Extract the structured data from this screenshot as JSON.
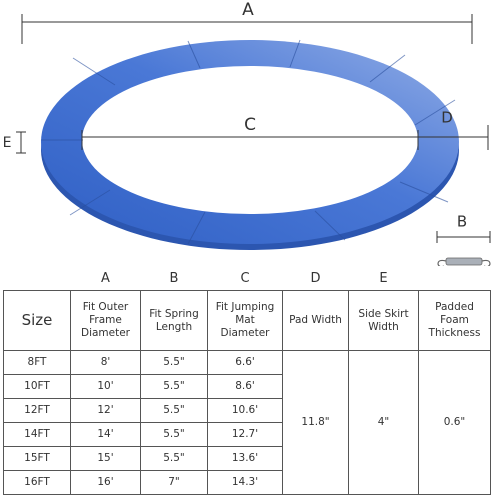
{
  "diagram": {
    "labels": {
      "a": "A",
      "c": "C",
      "d": "D",
      "e": "E",
      "b": "B"
    }
  },
  "table": {
    "column_letters": [
      "A",
      "B",
      "C",
      "D",
      "E"
    ],
    "header": [
      "Size",
      "Fit Outer Frame Diameter",
      "Fit Spring Length",
      "Fit Jumping Mat Diameter",
      "Pad Width",
      "Side Skirt Width",
      "Padded Foam Thickness"
    ],
    "rows": [
      [
        "8FT",
        "8'",
        "5.5\"",
        "6.6'"
      ],
      [
        "10FT",
        "10'",
        "5.5\"",
        "8.6'"
      ],
      [
        "12FT",
        "12'",
        "5.5\"",
        "10.6'"
      ],
      [
        "14FT",
        "14'",
        "5.5\"",
        "12.7'"
      ],
      [
        "15FT",
        "15'",
        "5.5\"",
        "13.6'"
      ],
      [
        "16FT",
        "16'",
        "7\"",
        "14.3'"
      ]
    ],
    "shared": [
      "11.8\"",
      "4\"",
      "0.6\""
    ]
  }
}
